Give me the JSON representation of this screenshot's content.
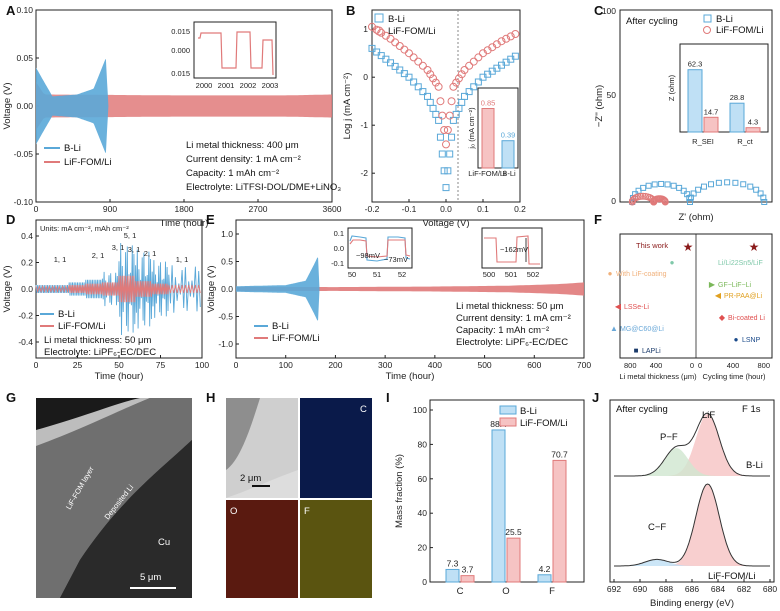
{
  "panels": {
    "A": {
      "label": "A",
      "xlabel": "Time (hour)",
      "ylabel": "Voltage (V)",
      "xticks": [
        "0",
        "900",
        "1800",
        "2700",
        "3600"
      ],
      "yticks": [
        "-0.10",
        "-0.05",
        "0.00",
        "0.05",
        "0.10"
      ],
      "legend": [
        "B-Li",
        "LiF-FOM/Li"
      ],
      "notes": [
        "Li metal thickness: 400 μm",
        "Current density: 1 mA cm⁻²",
        "Capacity: 1 mAh cm⁻²",
        "Electrolyte: LiTFSI-DOL/DME+LiNO₃"
      ],
      "inset_xticks": [
        "2000",
        "2001",
        "2002",
        "2003"
      ],
      "inset_yticks": [
        "0.015",
        "0.000",
        "0.015"
      ]
    },
    "B": {
      "label": "B",
      "xlabel": "Voltage (V)",
      "ylabel": "Log j (mA cm⁻²)",
      "xticks": [
        "-0.2",
        "-0.1",
        "0.0",
        "0.1",
        "0.2"
      ],
      "yticks": [
        "1",
        "0",
        "-1",
        "-2"
      ],
      "legend": [
        "B-Li",
        "LiF-FOM/Li"
      ],
      "inset_ylabel": "j₀ (mA cm⁻²)",
      "inset_categories": [
        "LiF-FOM/Li",
        "B-Li"
      ],
      "inset_values": [
        "0.85",
        "0.39"
      ]
    },
    "C": {
      "label": "C",
      "title": "After cycling",
      "xlabel": "Z' (ohm)",
      "ylabel": "−Z'' (ohm)",
      "yticks": [
        "0",
        "50",
        "100"
      ],
      "legend": [
        "B-Li",
        "LiF-FOM/Li"
      ],
      "inset_ylabel": "Z (ohm)",
      "inset_categories": [
        "R_SEI",
        "R_ct"
      ],
      "inset_values": [
        "62.3",
        "14.7",
        "28.8",
        "4.3"
      ]
    },
    "D": {
      "label": "D",
      "units": "Units: mA cm⁻², mAh cm⁻²",
      "xlabel": "Time (hour)",
      "ylabel": "Voltage (V)",
      "xticks": [
        "0",
        "25",
        "50",
        "75",
        "100"
      ],
      "yticks": [
        "-0.4",
        "-0.2",
        "0.0",
        "0.2",
        "0.4"
      ],
      "legend": [
        "B-Li",
        "LiF-FOM/Li"
      ],
      "rate_labels": [
        "1, 1",
        "2, 1",
        "3, 1",
        "5, 1",
        "3, 1",
        "2, 1",
        "1, 1"
      ],
      "notes": [
        "Li metal thickness: 50 μm",
        "Electrolyte: LiPF₆-EC/DEC"
      ]
    },
    "E": {
      "label": "E",
      "xlabel": "Time (hour)",
      "ylabel": "Voltage (V)",
      "xticks": [
        "0",
        "100",
        "200",
        "300",
        "400",
        "500",
        "600",
        "700"
      ],
      "yticks": [
        "-1.0",
        "-0.5",
        "0.0",
        "0.5",
        "1.0"
      ],
      "legend": [
        "B-Li",
        "LiF-FOM/Li"
      ],
      "inset1_xticks": [
        "50",
        "51",
        "52"
      ],
      "inset1_yticks": [
        "0.1",
        "0.0",
        "-0.1"
      ],
      "inset1_labels": [
        "~98mV",
        "~73mV"
      ],
      "inset2_xticks": [
        "500",
        "501",
        "502"
      ],
      "inset2_labels": [
        "~162mV"
      ],
      "notes": [
        "Li metal thickness: 50 μm",
        "Current density: 1 mA cm⁻²",
        "Capacity: 1 mAh cm⁻²",
        "Electrolyte: LiPF₆-EC/DEC"
      ]
    },
    "F": {
      "label": "F",
      "this_work": "This work",
      "methods": [
        "Li/Li22Sn5/LiF",
        "With LiF-coating",
        "GF−LiF−Li",
        "PR-PAA@Li",
        "LSSe-Li",
        "Bi-coated Li",
        "MG@C60@Li",
        "LSNP",
        "LAPLi"
      ],
      "xticks_left": [
        "800",
        "400",
        "0"
      ],
      "xticks_right": [
        "0",
        "400",
        "800"
      ],
      "xlabel_left": "Li metal thickness (μm)",
      "xlabel_right": "Cycling time (hour)"
    },
    "G": {
      "label": "G",
      "labels": [
        "LiF-FOM layer",
        "Deposited Li",
        "Cu"
      ],
      "scale": "5 μm"
    },
    "H": {
      "label": "H",
      "tiles": [
        "C",
        "O",
        "F"
      ],
      "scale": "2 μm"
    },
    "I": {
      "label": "I",
      "ylabel": "Mass fraction (%)",
      "categories": [
        "C",
        "O",
        "F"
      ],
      "legend": [
        "B-Li",
        "LiF-FOM/Li"
      ],
      "yticks": [
        "0",
        "20",
        "40",
        "60",
        "80",
        "100"
      ],
      "bar_labels_bli": [
        "7.3",
        "88.4",
        "4.2"
      ],
      "bar_labels_lif": [
        "3.7",
        "25.5",
        "70.7"
      ]
    },
    "J": {
      "label": "J",
      "title": "After cycling",
      "xlabel": "Binding energy (eV)",
      "region": "F 1s",
      "xticks": [
        "692",
        "690",
        "688",
        "686",
        "684",
        "682",
        "680"
      ],
      "peaks": [
        "LiF",
        "P−F",
        "C−F"
      ],
      "samples": [
        "B-Li",
        "LiF-FOM/Li"
      ]
    }
  },
  "chart_data": [
    {
      "panel": "A",
      "type": "line",
      "title": "",
      "xlabel": "Time (hour)",
      "ylabel": "Voltage (V)",
      "xlim": [
        0,
        3600
      ],
      "ylim": [
        -0.1,
        0.1
      ],
      "series": [
        {
          "name": "B-Li",
          "envelope": [
            [
              0,
              0.04
            ],
            [
              200,
              0.01
            ],
            [
              500,
              0.012
            ],
            [
              700,
              0.018
            ],
            [
              850,
              0.05
            ],
            [
              880,
              0.0
            ]
          ]
        },
        {
          "name": "LiF-FOM/Li",
          "envelope": [
            [
              0,
              0.025
            ],
            [
              100,
              0.012
            ],
            [
              1800,
              0.011
            ],
            [
              3000,
              0.011
            ],
            [
              3600,
              0.012
            ]
          ]
        }
      ]
    },
    {
      "panel": "B",
      "type": "scatter",
      "title": "",
      "xlabel": "Voltage (V)",
      "ylabel": "Log j (mA cm⁻²)",
      "xlim": [
        -0.2,
        0.2
      ],
      "ylim": [
        -2.6,
        1.4
      ],
      "series": [
        {
          "name": "B-Li",
          "x": [
            -0.2,
            -0.15,
            -0.1,
            -0.05,
            -0.02,
            0,
            0.02,
            0.05,
            0.1,
            0.15,
            0.2
          ],
          "y": [
            0.6,
            0.3,
            0.0,
            -0.4,
            -0.9,
            -2.3,
            -0.9,
            -0.4,
            0.0,
            0.25,
            0.5
          ]
        },
        {
          "name": "LiF-FOM/Li",
          "x": [
            -0.2,
            -0.15,
            -0.1,
            -0.05,
            -0.02,
            0,
            0.02,
            0.05,
            0.1,
            0.15,
            0.2
          ],
          "y": [
            1.05,
            0.8,
            0.5,
            0.15,
            -0.2,
            -1.4,
            -0.2,
            0.15,
            0.5,
            0.75,
            0.95
          ]
        }
      ],
      "inset": {
        "type": "bar",
        "categories": [
          "LiF-FOM/Li",
          "B-Li"
        ],
        "values": [
          0.85,
          0.39
        ],
        "ylabel": "j₀ (mA cm⁻²)"
      }
    },
    {
      "panel": "C",
      "type": "scatter",
      "title": "After cycling",
      "xlabel": "Z' (ohm)",
      "ylabel": "−Z'' (ohm)",
      "ylim": [
        0,
        130
      ],
      "series": [
        {
          "name": "B-Li",
          "semicircles": [
            [
              5,
              40,
              22
            ],
            [
              40,
              85,
              24
            ]
          ]
        },
        {
          "name": "LiF-FOM/Li",
          "semicircles": [
            [
              5,
              18,
              7
            ],
            [
              18,
              25,
              4
            ]
          ]
        }
      ],
      "inset": {
        "type": "bar",
        "categories": [
          "R_SEI",
          "R_ct"
        ],
        "series": [
          {
            "name": "B-Li",
            "values": [
              62.3,
              28.8
            ]
          },
          {
            "name": "LiF-FOM/Li",
            "values": [
              14.7,
              4.3
            ]
          }
        ],
        "ylabel": "Z (ohm)"
      }
    },
    {
      "panel": "D",
      "type": "line",
      "title": "",
      "xlabel": "Time (hour)",
      "ylabel": "Voltage (V)",
      "xlim": [
        0,
        100
      ],
      "ylim": [
        -0.5,
        0.5
      ],
      "series": [
        {
          "name": "B-Li",
          "segments": [
            [
              0,
              10,
              0.03
            ],
            [
              10,
              20,
              0.03
            ],
            [
              20,
              30,
              0.05
            ],
            [
              30,
              40,
              0.07
            ],
            [
              40,
              50,
              0.13
            ],
            [
              50,
              60,
              0.35
            ],
            [
              60,
              70,
              0.3
            ],
            [
              70,
              80,
              0.22
            ],
            [
              80,
              100,
              0.18
            ]
          ]
        },
        {
          "name": "LiF-FOM/Li",
          "segments": [
            [
              0,
              20,
              0.02
            ],
            [
              20,
              30,
              0.03
            ],
            [
              30,
              40,
              0.04
            ],
            [
              40,
              50,
              0.05
            ],
            [
              50,
              60,
              0.1
            ],
            [
              60,
              70,
              0.06
            ],
            [
              70,
              80,
              0.04
            ],
            [
              80,
              100,
              0.03
            ]
          ]
        }
      ]
    },
    {
      "panel": "E",
      "type": "line",
      "title": "",
      "xlabel": "Time (hour)",
      "ylabel": "Voltage (V)",
      "xlim": [
        0,
        700
      ],
      "ylim": [
        -1.0,
        1.0
      ],
      "series": [
        {
          "name": "B-Li",
          "envelope": [
            [
              0,
              0.05
            ],
            [
              100,
              0.07
            ],
            [
              140,
              0.15
            ],
            [
              160,
              0.5
            ],
            [
              165,
              0.6
            ],
            [
              168,
              0.0
            ]
          ]
        },
        {
          "name": "LiF-FOM/Li",
          "envelope": [
            [
              0,
              0.04
            ],
            [
              200,
              0.035
            ],
            [
              400,
              0.045
            ],
            [
              550,
              0.06
            ],
            [
              650,
              0.09
            ],
            [
              700,
              0.12
            ]
          ]
        }
      ]
    },
    {
      "panel": "I",
      "type": "bar",
      "title": "",
      "xlabel": "",
      "ylabel": "Mass fraction (%)",
      "ylim": [
        0,
        100
      ],
      "categories": [
        "C",
        "O",
        "F"
      ],
      "series": [
        {
          "name": "B-Li",
          "values": [
            7.3,
            88.4,
            4.2
          ]
        },
        {
          "name": "LiF-FOM/Li",
          "values": [
            3.7,
            25.5,
            70.7
          ]
        }
      ]
    },
    {
      "panel": "J",
      "type": "line",
      "title": "After cycling",
      "xlabel": "Binding energy (eV)",
      "ylabel": "",
      "xlim": [
        692,
        680
      ],
      "series": [
        {
          "name": "B-Li",
          "peaks": [
            [
              684.8,
              1.0
            ],
            [
              687.2,
              0.45
            ]
          ]
        },
        {
          "name": "LiF-FOM/Li",
          "peaks": [
            [
              684.8,
              1.0
            ],
            [
              688.7,
              0.08
            ]
          ]
        }
      ]
    }
  ],
  "colors": {
    "bli": "#5aa8d8",
    "lif": "#e07a7a",
    "bli_fill": "#bfe0f5",
    "lif_fill": "#f6c3c3",
    "dark": "#1a1a1a"
  }
}
